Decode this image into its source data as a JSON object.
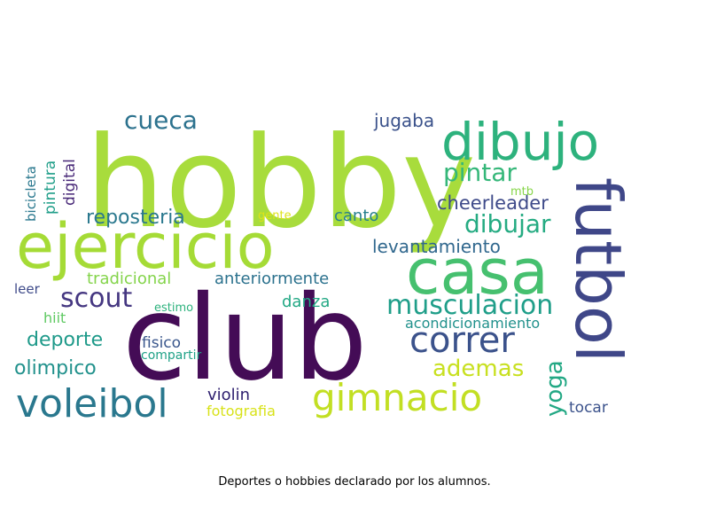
{
  "caption": "Deportes o hobbies declarado por los alumnos.",
  "chart_data": {
    "type": "wordcloud",
    "title": "",
    "words": [
      {
        "text": "hobby",
        "weight": 1.0,
        "color": "#a8dc3c"
      },
      {
        "text": "club",
        "weight": 0.98,
        "color": "#440c56"
      },
      {
        "text": "casa",
        "weight": 0.62,
        "color": "#46c06f"
      },
      {
        "text": "ejercicio",
        "weight": 0.58,
        "color": "#a5db36"
      },
      {
        "text": "futbol",
        "weight": 0.55,
        "color": "#3f4788"
      },
      {
        "text": "dibujo",
        "weight": 0.48,
        "color": "#2db27d"
      },
      {
        "text": "voleibol",
        "weight": 0.4,
        "color": "#2a788e"
      },
      {
        "text": "gimnacio",
        "weight": 0.37,
        "color": "#c2df23"
      },
      {
        "text": "correr",
        "weight": 0.34,
        "color": "#3b528b"
      },
      {
        "text": "musculacion",
        "weight": 0.28,
        "color": "#1f9e89"
      },
      {
        "text": "scout",
        "weight": 0.27,
        "color": "#453781"
      },
      {
        "text": "pintar",
        "weight": 0.25,
        "color": "#35b779"
      },
      {
        "text": "dibujar",
        "weight": 0.25,
        "color": "#25ab82"
      },
      {
        "text": "cueca",
        "weight": 0.25,
        "color": "#2c728e"
      },
      {
        "text": "ademas",
        "weight": 0.24,
        "color": "#c8e020"
      },
      {
        "text": "yoga",
        "weight": 0.24,
        "color": "#22a884"
      },
      {
        "text": "deporte",
        "weight": 0.2,
        "color": "#1f9a8a"
      },
      {
        "text": "olimpico",
        "weight": 0.19,
        "color": "#21918c"
      },
      {
        "text": "reposteria",
        "weight": 0.19,
        "color": "#2a788e"
      },
      {
        "text": "cheerleader",
        "weight": 0.18,
        "color": "#3e4a89"
      },
      {
        "text": "levantamiento",
        "weight": 0.17,
        "color": "#31688e"
      },
      {
        "text": "jugaba",
        "weight": 0.17,
        "color": "#3b528b"
      },
      {
        "text": "canto",
        "weight": 0.16,
        "color": "#27808e"
      },
      {
        "text": "tradicional",
        "weight": 0.16,
        "color": "#84d44b"
      },
      {
        "text": "anteriormente",
        "weight": 0.16,
        "color": "#2c728e"
      },
      {
        "text": "danza",
        "weight": 0.16,
        "color": "#22a884"
      },
      {
        "text": "violin",
        "weight": 0.16,
        "color": "#2d1e6e"
      },
      {
        "text": "tocar",
        "weight": 0.15,
        "color": "#3b528b"
      },
      {
        "text": "fisico",
        "weight": 0.15,
        "color": "#39568c"
      },
      {
        "text": "acondicionamiento",
        "weight": 0.14,
        "color": "#21918c"
      },
      {
        "text": "pintura",
        "weight": 0.14,
        "color": "#1f9e89"
      },
      {
        "text": "digital",
        "weight": 0.14,
        "color": "#482878"
      },
      {
        "text": "fotografia",
        "weight": 0.14,
        "color": "#d8e219"
      },
      {
        "text": "hiit",
        "weight": 0.14,
        "color": "#5ec962"
      },
      {
        "text": "leer",
        "weight": 0.13,
        "color": "#3e4a89"
      },
      {
        "text": "bicicleta",
        "weight": 0.13,
        "color": "#2a788e"
      },
      {
        "text": "compartir",
        "weight": 0.12,
        "color": "#1fa187"
      },
      {
        "text": "estimo",
        "weight": 0.11,
        "color": "#2db27d"
      },
      {
        "text": "mtb",
        "weight": 0.1,
        "color": "#86d549"
      },
      {
        "text": "gente",
        "weight": 0.1,
        "color": "#dde318"
      }
    ]
  }
}
